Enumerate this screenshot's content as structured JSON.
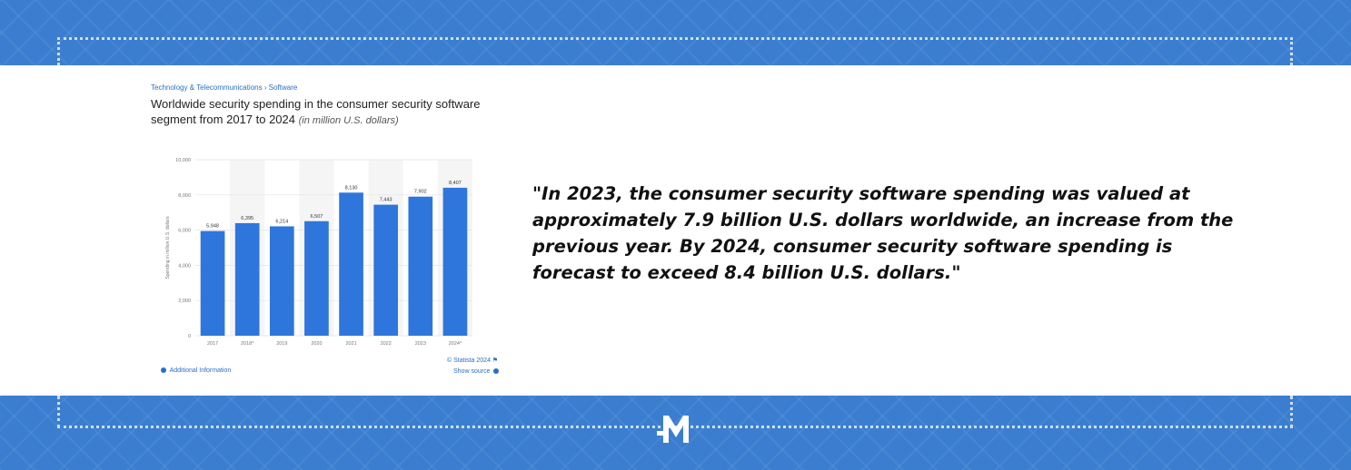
{
  "breadcrumb": {
    "category": "Technology & Telecommunications",
    "separator": "›",
    "subcategory": "Software"
  },
  "chart_header": {
    "title": "Worldwide security spending in the consumer security software segment from 2017 to  2024",
    "unit": "(in million U.S. dollars)"
  },
  "chart_data": {
    "type": "bar",
    "categories": [
      "2017",
      "2018*",
      "2019",
      "2020",
      "2021",
      "2022",
      "2023",
      "2024*"
    ],
    "values": [
      5948,
      6395,
      6214,
      6507,
      8130,
      7443,
      7902,
      8407
    ],
    "value_labels": [
      "5,948",
      "6,395",
      "6,214",
      "6,507",
      "8,130",
      "7,443",
      "7,902",
      "8,407"
    ],
    "title": "Worldwide security spending in the consumer security software segment from 2017 to  2024",
    "ylabel": "Spending in million U.S. dollars",
    "xlabel": "",
    "ylim": [
      0,
      10000
    ],
    "yticks": [
      0,
      2000,
      4000,
      6000,
      8000,
      10000
    ],
    "ytick_labels": [
      "0",
      "2,000",
      "4,000",
      "6,000",
      "8,000",
      "10,000"
    ],
    "bar_color": "#2e76dc",
    "grid": true,
    "legend": "none"
  },
  "footer_links": {
    "additional_info": "Additional Information",
    "copyright": "© Statista 2024",
    "show_source": "Show source"
  },
  "quote": {
    "text": "\"In 2023, the consumer security software spending was valued at approximately 7.9 billion U.S. dollars worldwide, an increase from the previous year. By 2024, consumer security software spending is forecast to exceed 8.4 billion U.S. dollars.\""
  },
  "colors": {
    "band": "#3b7ed0",
    "link": "#2a6fc9",
    "bar": "#2e76dc"
  },
  "logo": {
    "icon": "m-logo-icon"
  }
}
